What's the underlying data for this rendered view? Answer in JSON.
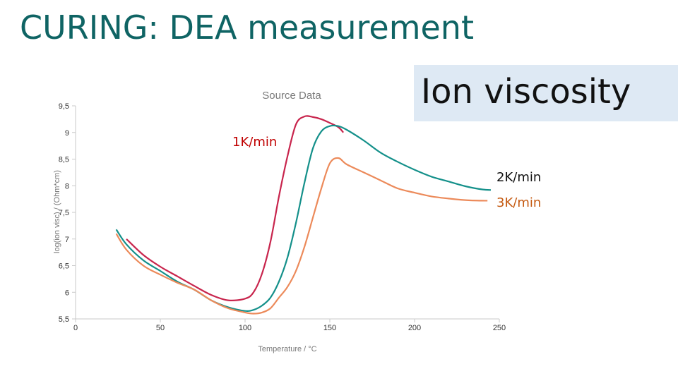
{
  "slide": {
    "title": "CURING: DEA measurement",
    "callout": "Ion viscosity"
  },
  "colors": {
    "title": "#0f6464",
    "callout_bg": "#dee9f4",
    "series_1K": "#c8254d",
    "series_2K": "#14908a",
    "series_3K": "#ec8a5a",
    "label_1K": "#c00000",
    "label_3K": "#c55a11"
  },
  "chart_data": {
    "type": "line",
    "title": "Source Data",
    "xlabel": "Temperature / °C",
    "ylabel": "log(ion visc) / (Ohm*cm)",
    "xlim": [
      0,
      250
    ],
    "ylim": [
      5.5,
      9.5
    ],
    "xticks": [
      "0",
      "50",
      "100",
      "150",
      "200",
      "250"
    ],
    "yticks": [
      "5,5",
      "6",
      "6,5",
      "7",
      "7,5",
      "8",
      "8,5",
      "9",
      "9,5"
    ],
    "grid": false,
    "series": [
      {
        "name": "1K/min",
        "color": "#c8254d",
        "x": [
          30,
          40,
          50,
          60,
          70,
          80,
          90,
          100,
          105,
          110,
          115,
          120,
          125,
          130,
          135,
          140,
          145,
          150,
          155,
          158
        ],
        "y": [
          7.0,
          6.7,
          6.48,
          6.3,
          6.12,
          5.95,
          5.85,
          5.88,
          6.0,
          6.35,
          6.95,
          7.8,
          8.55,
          9.15,
          9.3,
          9.29,
          9.25,
          9.18,
          9.1,
          9.0
        ]
      },
      {
        "name": "2K/min",
        "color": "#14908a",
        "x": [
          24,
          30,
          40,
          50,
          60,
          70,
          80,
          90,
          100,
          105,
          110,
          115,
          120,
          125,
          130,
          135,
          140,
          145,
          150,
          155,
          160,
          170,
          180,
          190,
          200,
          210,
          220,
          230,
          240,
          245
        ],
        "y": [
          7.18,
          6.9,
          6.6,
          6.4,
          6.2,
          6.05,
          5.85,
          5.72,
          5.65,
          5.67,
          5.75,
          5.9,
          6.2,
          6.65,
          7.3,
          8.05,
          8.7,
          9.02,
          9.12,
          9.12,
          9.05,
          8.85,
          8.62,
          8.45,
          8.3,
          8.17,
          8.08,
          7.99,
          7.93,
          7.92
        ]
      },
      {
        "name": "3K/min",
        "color": "#ec8a5a",
        "x": [
          24,
          30,
          40,
          50,
          60,
          70,
          80,
          90,
          100,
          105,
          110,
          115,
          120,
          125,
          130,
          135,
          140,
          145,
          150,
          155,
          160,
          170,
          180,
          190,
          200,
          210,
          220,
          230,
          240,
          243
        ],
        "y": [
          7.1,
          6.8,
          6.5,
          6.33,
          6.18,
          6.05,
          5.85,
          5.7,
          5.62,
          5.6,
          5.62,
          5.7,
          5.9,
          6.1,
          6.4,
          6.85,
          7.4,
          7.95,
          8.42,
          8.52,
          8.4,
          8.25,
          8.1,
          7.95,
          7.87,
          7.8,
          7.76,
          7.73,
          7.72,
          7.72
        ]
      }
    ],
    "annotations": [
      "1K/min",
      "2K/min",
      "3K/min"
    ]
  }
}
